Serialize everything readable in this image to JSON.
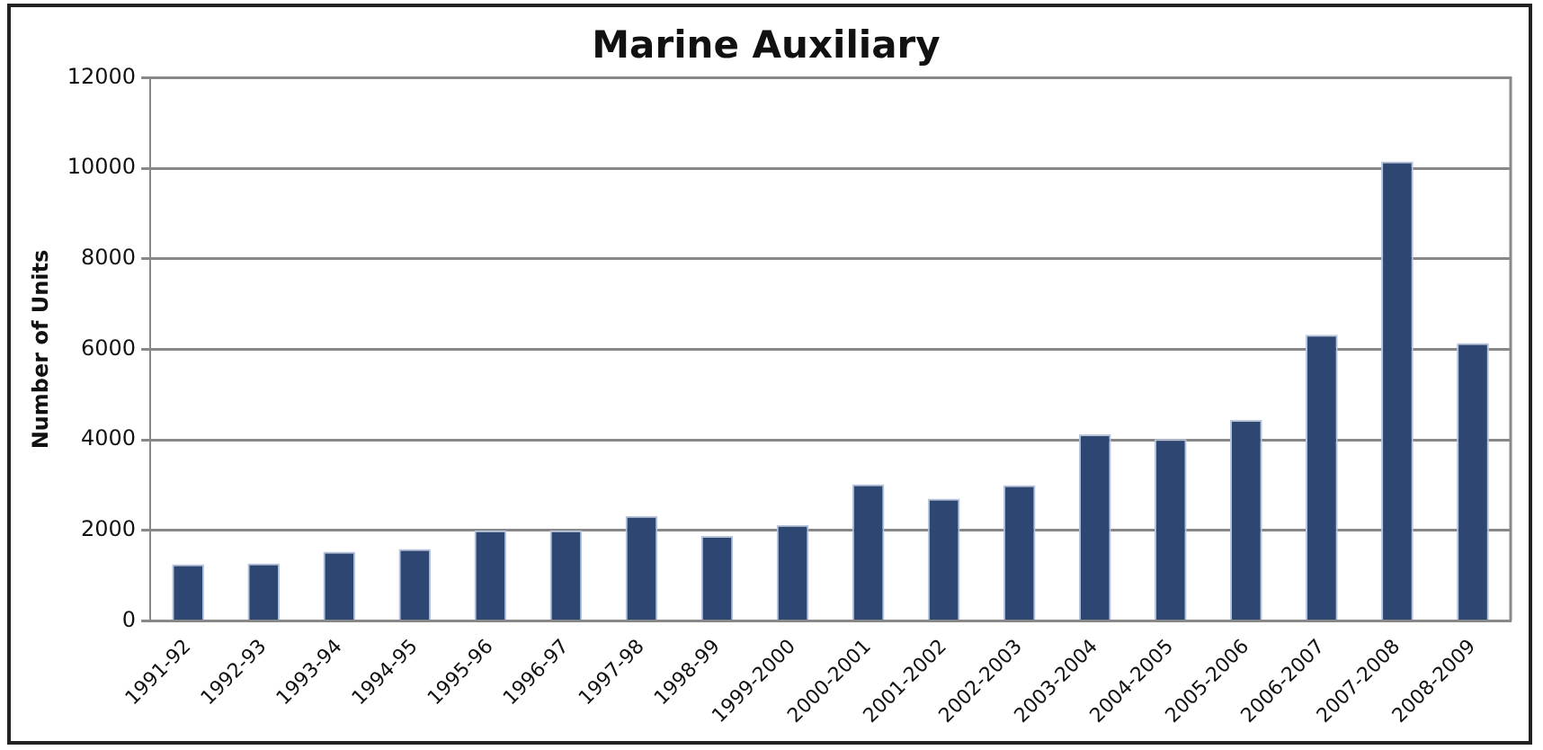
{
  "chart_data": {
    "type": "bar",
    "title": "Marine Auxiliary",
    "ylabel": "Number of Units",
    "categories": [
      "1991-92",
      "1992-93",
      "1993-94",
      "1994-95",
      "1995-96",
      "1996-97",
      "1997-98",
      "1998-99",
      "1999-2000",
      "2000-2001",
      "2001-2002",
      "2002-2003",
      "2003-2004",
      "2004-2005",
      "2005-2006",
      "2006-2007",
      "2007-2008",
      "2008-2009"
    ],
    "values": [
      1250,
      1270,
      1530,
      1590,
      2000,
      2000,
      2320,
      1880,
      2120,
      3020,
      2700,
      3000,
      4120,
      4020,
      4440,
      6320,
      10150,
      6140
    ],
    "color": "#2e4672",
    "ylim": [
      0,
      12000
    ],
    "yticks": [
      0,
      2000,
      4000,
      6000,
      8000,
      10000,
      12000
    ],
    "grid": "y",
    "legend": false
  }
}
